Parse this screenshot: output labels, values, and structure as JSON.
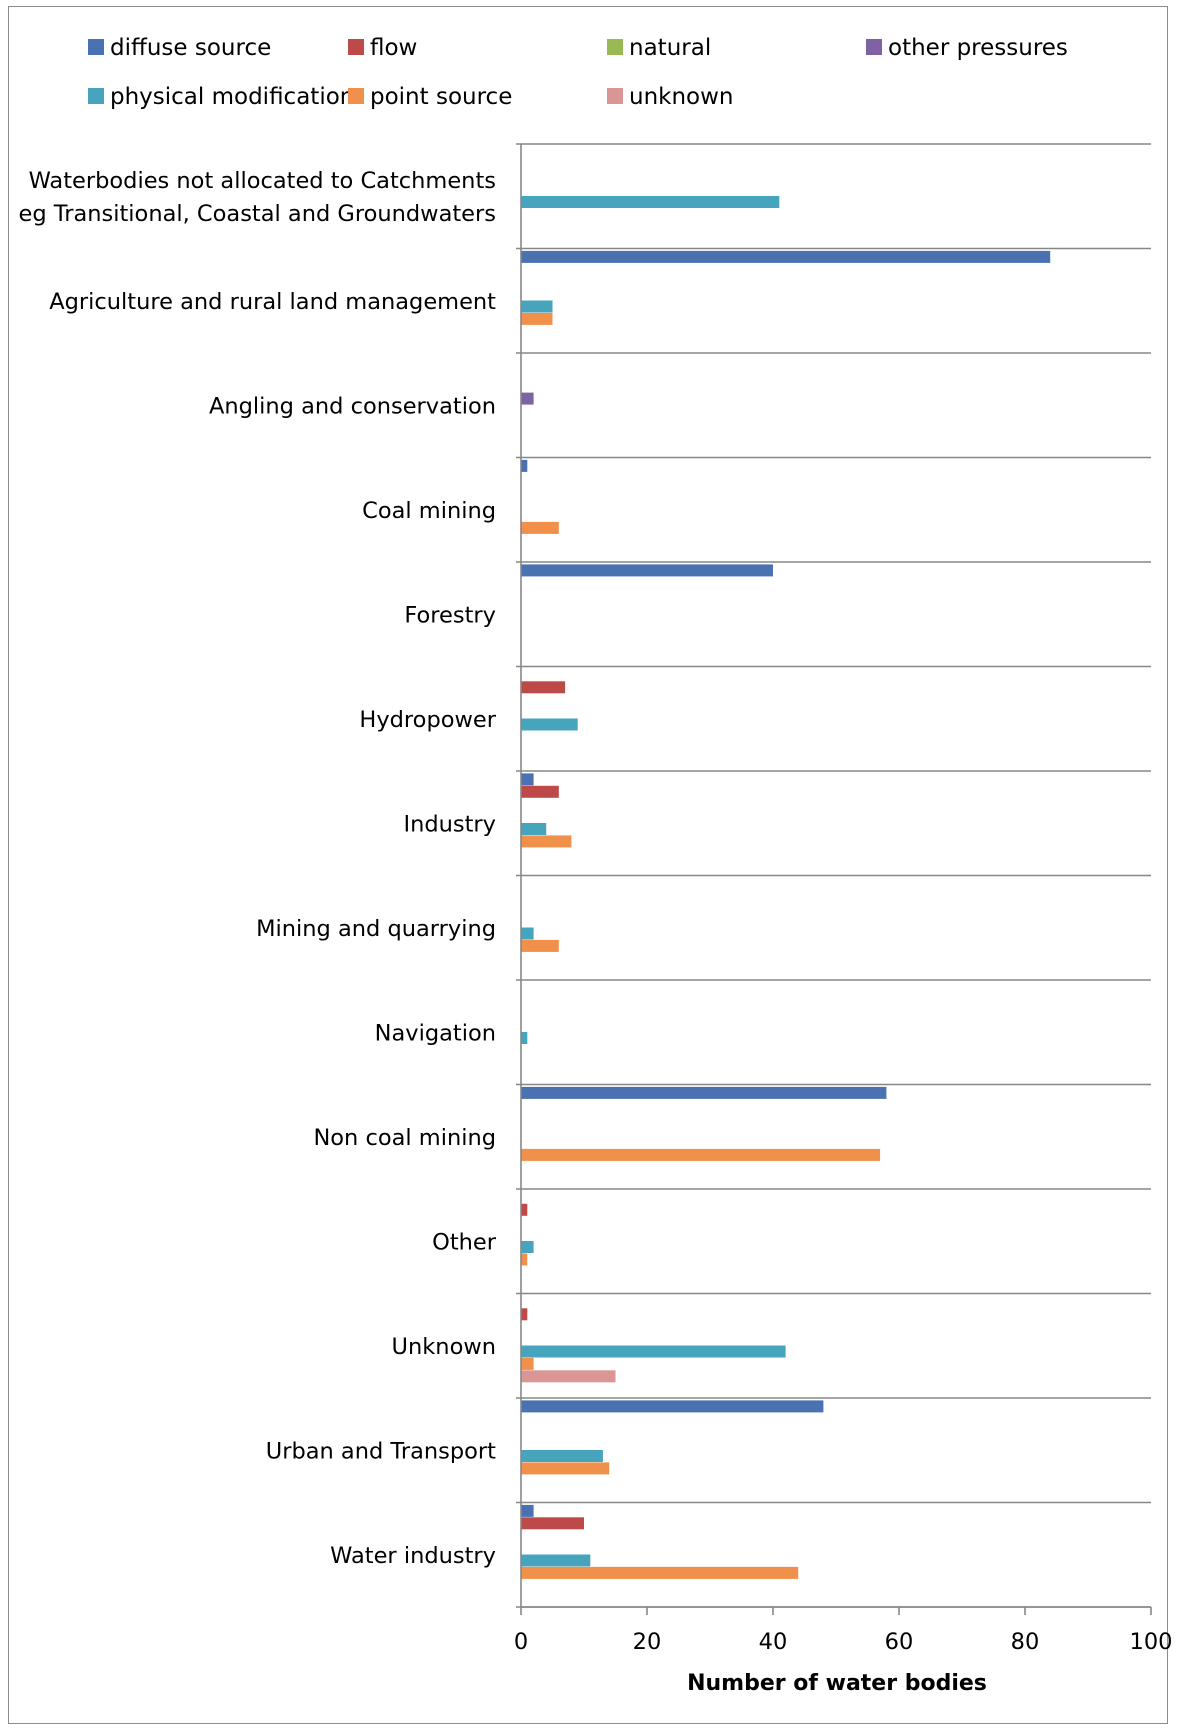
{
  "chart_data": {
    "type": "bar",
    "orientation": "horizontal",
    "xlabel": "Number of water bodies",
    "xlim": [
      0,
      100
    ],
    "xticks": [
      "0",
      "20",
      "40",
      "60",
      "80",
      "100"
    ],
    "grid": "horizontal separators between categories",
    "legend_position": "top",
    "categories": [
      "Waterbodies not allocated to Catchments eg Transitional, Coastal and Groundwaters",
      "Agriculture and rural land management",
      "Angling and conservation",
      "Coal mining",
      "Forestry",
      "Hydropower",
      "Industry",
      "Mining and quarrying",
      "Navigation",
      "Non coal mining",
      "Other",
      "Unknown",
      "Urban and Transport",
      "Water industry"
    ],
    "category_lines": [
      [
        "Waterbodies not allocated to Catchments",
        "eg Transitional, Coastal and Groundwaters"
      ],
      [
        "Agriculture and rural land management"
      ],
      [
        "Angling and conservation"
      ],
      [
        "Coal mining"
      ],
      [
        "Forestry"
      ],
      [
        "Hydropower"
      ],
      [
        "Industry"
      ],
      [
        "Mining and quarrying"
      ],
      [
        "Navigation"
      ],
      [
        "Non coal mining"
      ],
      [
        "Other"
      ],
      [
        "Unknown"
      ],
      [
        "Urban and Transport"
      ],
      [
        "Water industry"
      ]
    ],
    "series": [
      {
        "name": "diffuse source",
        "color": "#4a72b0",
        "values": [
          0,
          84,
          0,
          1,
          40,
          0,
          2,
          0,
          0,
          58,
          0,
          0,
          48,
          2
        ]
      },
      {
        "name": "flow",
        "color": "#bd4a48",
        "values": [
          0,
          0,
          0,
          0,
          0,
          7,
          6,
          0,
          0,
          0,
          1,
          1,
          0,
          10
        ]
      },
      {
        "name": "natural",
        "color": "#98b954",
        "values": [
          0,
          0,
          0,
          0,
          0,
          0,
          0,
          0,
          0,
          0,
          0,
          0,
          0,
          0
        ]
      },
      {
        "name": "other pressures",
        "color": "#7e62a1",
        "values": [
          0,
          0,
          2,
          0,
          0,
          0,
          0,
          0,
          0,
          0,
          0,
          0,
          0,
          0
        ]
      },
      {
        "name": "physical modification",
        "color": "#46a5bd",
        "values": [
          41,
          5,
          0,
          0,
          0,
          9,
          4,
          2,
          1,
          0,
          2,
          42,
          13,
          11
        ]
      },
      {
        "name": "point source",
        "color": "#f0904a",
        "values": [
          0,
          5,
          0,
          6,
          0,
          0,
          8,
          6,
          0,
          57,
          1,
          2,
          14,
          44
        ]
      },
      {
        "name": "unknown",
        "color": "#da9694",
        "values": [
          0,
          0,
          0,
          0,
          0,
          0,
          0,
          0,
          0,
          0,
          0,
          15,
          0,
          0
        ]
      }
    ]
  }
}
